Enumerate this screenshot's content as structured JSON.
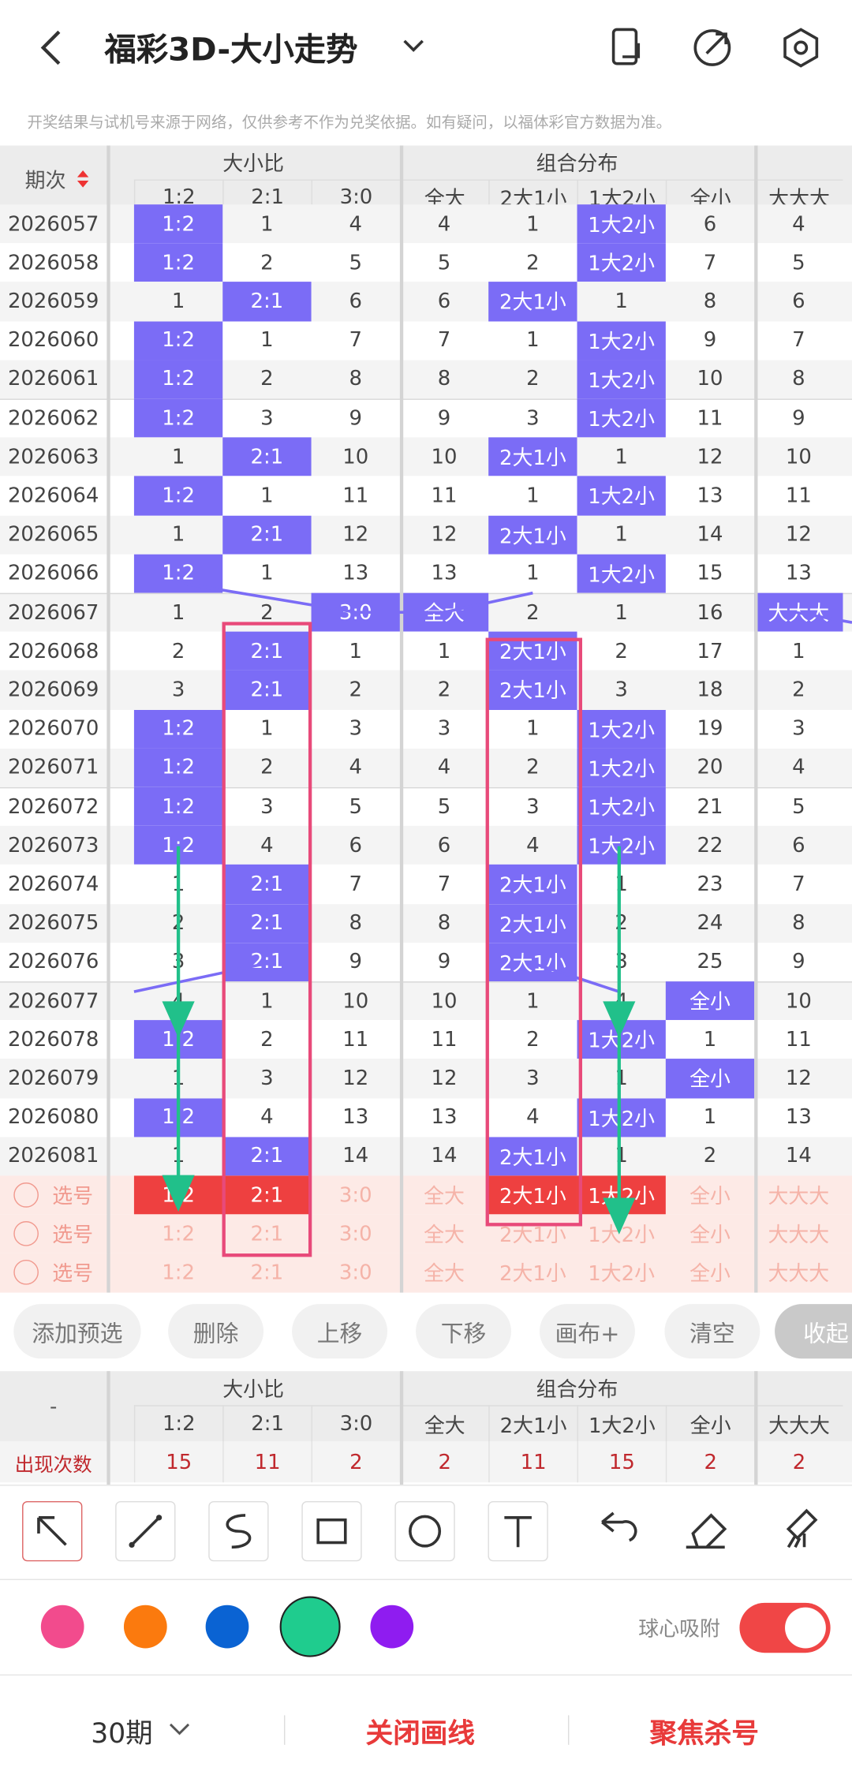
{
  "header": {
    "title": "福彩3D-大小走势",
    "notice": "开奖结果与试机号来源于网络，仅供参考不作为兑奖依据。如有疑问，以福体彩官方数据为准。"
  },
  "table": {
    "period_header": "期次",
    "group_headers": [
      "大小比",
      "组合分布"
    ],
    "sub_headers": [
      "1:2",
      "2:1",
      "3:0",
      "全大",
      "2大1小",
      "1大2小",
      "全小",
      "大大大"
    ],
    "rows": [
      [
        "2026057",
        "1:2",
        1,
        4,
        4,
        1,
        "1大2小",
        6,
        4
      ],
      [
        "2026058",
        "1:2",
        2,
        5,
        5,
        2,
        "1大2小",
        7,
        5
      ],
      [
        "2026059",
        1,
        "2:1",
        6,
        6,
        "2大1小",
        1,
        8,
        6
      ],
      [
        "2026060",
        "1:2",
        1,
        7,
        7,
        1,
        "1大2小",
        9,
        7
      ],
      [
        "2026061",
        "1:2",
        2,
        8,
        8,
        2,
        "1大2小",
        10,
        8
      ],
      [
        "2026062",
        "1:2",
        3,
        9,
        9,
        3,
        "1大2小",
        11,
        9
      ],
      [
        "2026063",
        1,
        "2:1",
        10,
        10,
        "2大1小",
        1,
        12,
        10
      ],
      [
        "2026064",
        "1:2",
        1,
        11,
        11,
        1,
        "1大2小",
        13,
        11
      ],
      [
        "2026065",
        1,
        "2:1",
        12,
        12,
        "2大1小",
        1,
        14,
        12
      ],
      [
        "2026066",
        "1:2",
        1,
        13,
        13,
        1,
        "1大2小",
        15,
        13
      ],
      [
        "2026067",
        1,
        2,
        "3:0",
        "全大",
        2,
        1,
        16,
        "大大大"
      ],
      [
        "2026068",
        2,
        "2:1",
        1,
        1,
        "2大1小",
        2,
        17,
        1
      ],
      [
        "2026069",
        3,
        "2:1",
        2,
        2,
        "2大1小",
        3,
        18,
        2
      ],
      [
        "2026070",
        "1:2",
        1,
        3,
        3,
        1,
        "1大2小",
        19,
        3
      ],
      [
        "2026071",
        "1:2",
        2,
        4,
        4,
        2,
        "1大2小",
        20,
        4
      ],
      [
        "2026072",
        "1:2",
        3,
        5,
        5,
        3,
        "1大2小",
        21,
        5
      ],
      [
        "2026073",
        "1:2",
        4,
        6,
        6,
        4,
        "1大2小",
        22,
        6
      ],
      [
        "2026074",
        1,
        "2:1",
        7,
        7,
        "2大1小",
        1,
        23,
        7
      ],
      [
        "2026075",
        2,
        "2:1",
        8,
        8,
        "2大1小",
        2,
        24,
        8
      ],
      [
        "2026076",
        3,
        "2:1",
        9,
        9,
        "2大1小",
        3,
        25,
        9
      ],
      [
        "2026077",
        4,
        1,
        10,
        10,
        1,
        4,
        "全小",
        10
      ],
      [
        "2026078",
        "1:2",
        2,
        11,
        11,
        2,
        "1大2小",
        1,
        11
      ],
      [
        "2026079",
        1,
        3,
        12,
        12,
        3,
        1,
        "全小",
        12
      ],
      [
        "2026080",
        "1:2",
        4,
        13,
        13,
        4,
        "1大2小",
        1,
        13
      ],
      [
        "2026081",
        1,
        "2:1",
        14,
        14,
        "2大1小",
        1,
        2,
        14
      ]
    ],
    "select_label": "选号",
    "select_rows": [
      [
        0,
        1,
        4,
        5
      ],
      [],
      []
    ]
  },
  "buttons": [
    "添加预选",
    "删除",
    "上移",
    "下移",
    "画布+",
    "清空",
    "收起"
  ],
  "stats": {
    "corner": "-",
    "row_label": "出现次数",
    "counts": [
      15,
      11,
      2,
      2,
      11,
      15,
      2,
      2
    ]
  },
  "toolbar": {
    "snap_label": "球心吸附"
  },
  "footer": {
    "period": "30期",
    "close": "关闭画线",
    "focus": "聚焦杀号"
  }
}
